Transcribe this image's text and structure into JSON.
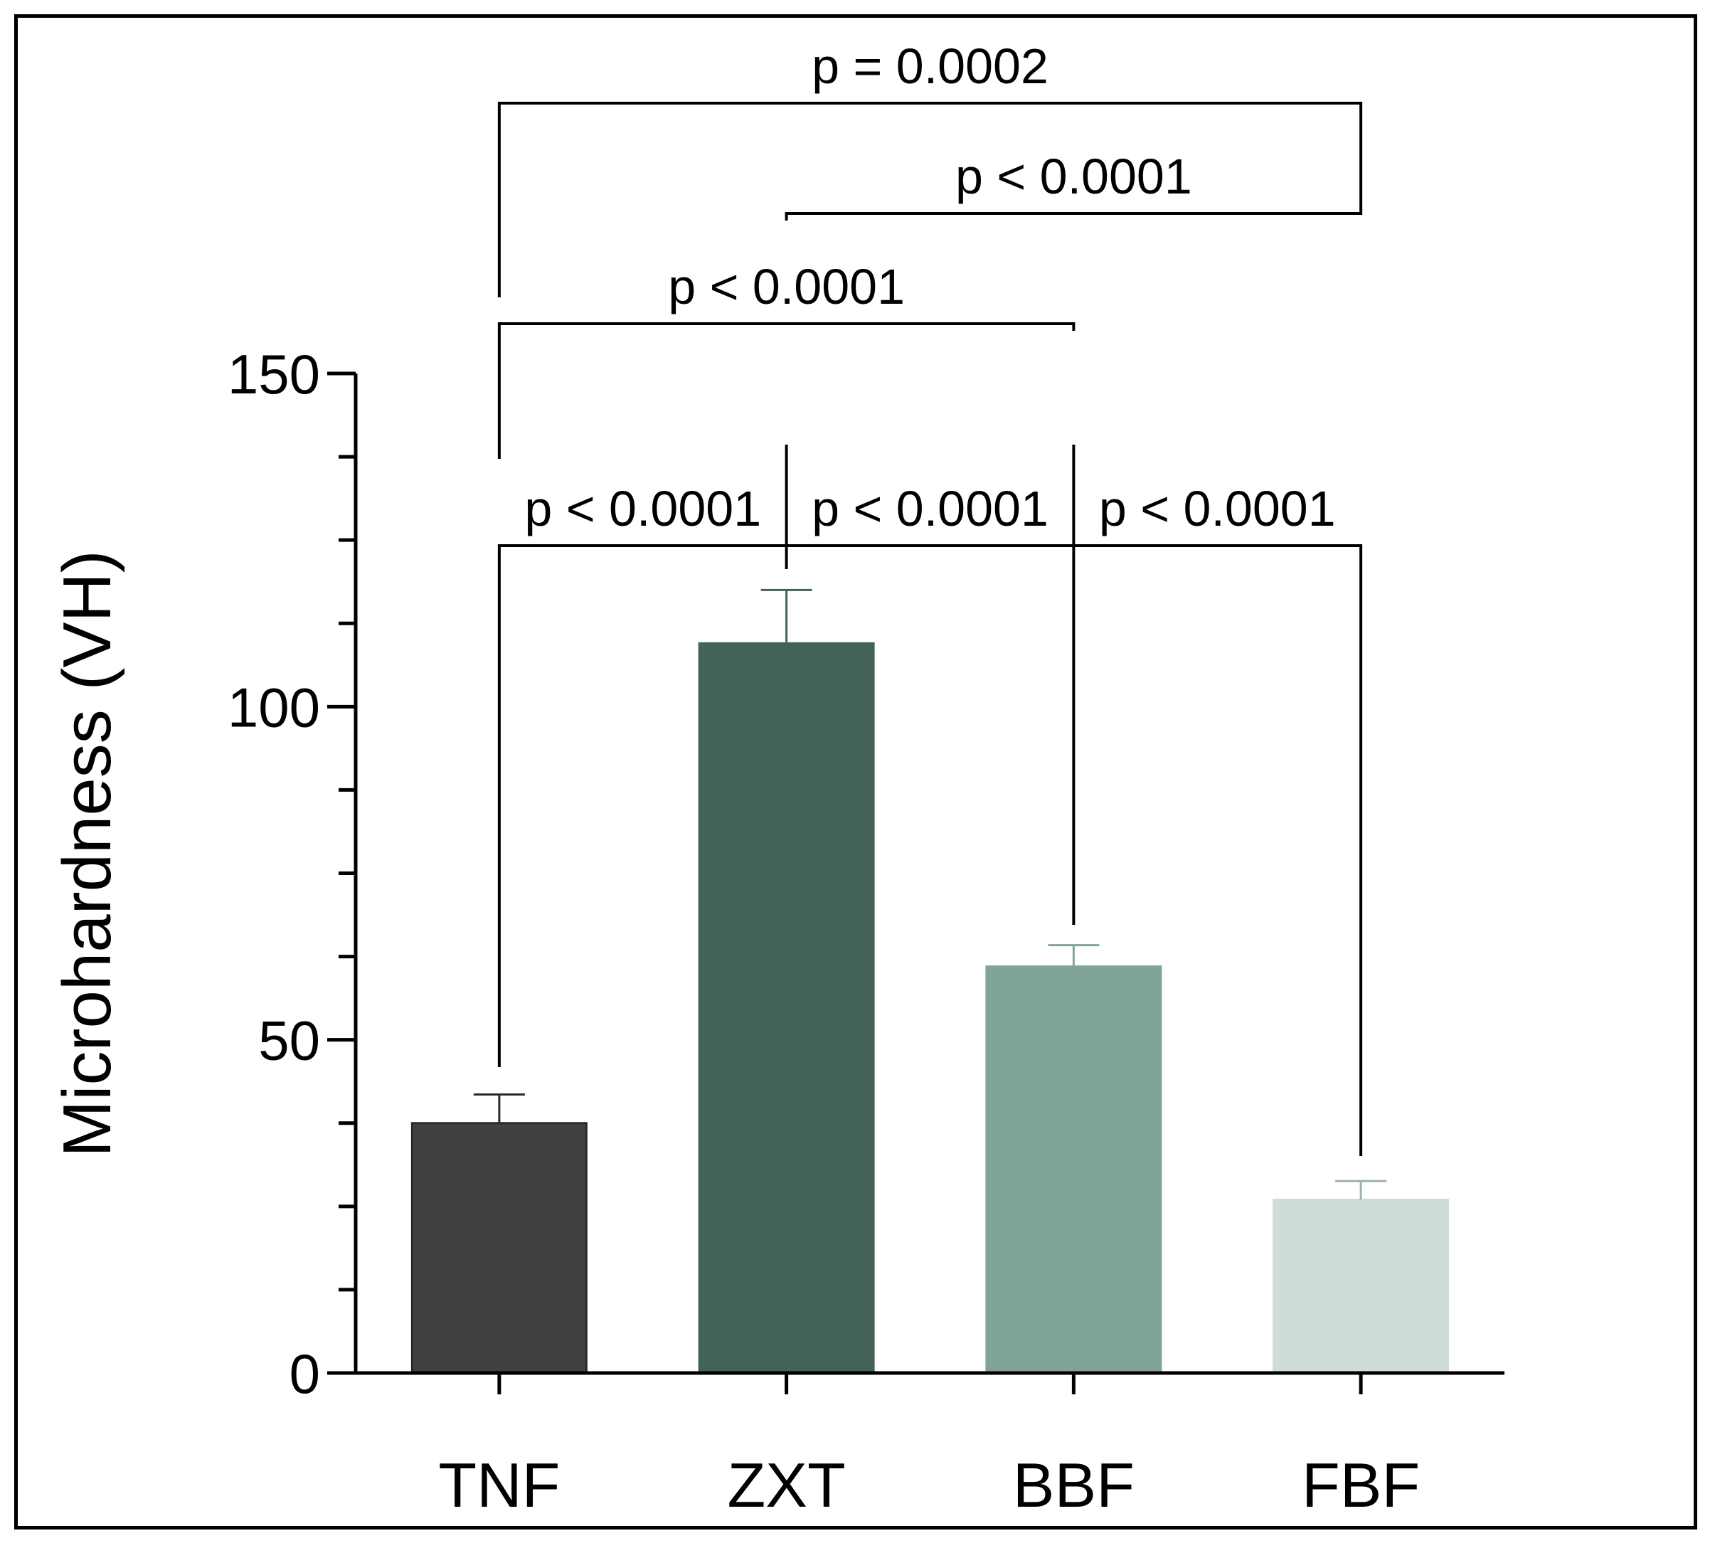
{
  "chart_data": {
    "type": "bar",
    "title": "",
    "xlabel": "",
    "ylabel": "Microhardness (VH)",
    "ylim": [
      0,
      150
    ],
    "y_major_ticks": [
      0,
      50,
      100,
      150
    ],
    "y_tick_labels": [
      "0",
      "50",
      "100",
      "150"
    ],
    "y_minor_step": 12.5,
    "categories": [
      "TNF",
      "ZXT",
      "BBF",
      "FBF"
    ],
    "values": [
      37.5,
      109.5,
      61,
      26
    ],
    "errors": [
      4.3,
      8.0,
      3.2,
      2.8
    ],
    "colors": [
      "#414141",
      "#426355",
      "#80a497",
      "#d0ddd6"
    ],
    "comparisons": [
      {
        "from": 0,
        "to": 1,
        "label": "p < 0.0001"
      },
      {
        "from": 1,
        "to": 2,
        "label": "p < 0.0001"
      },
      {
        "from": 2,
        "to": 3,
        "label": "p < 0.0001"
      },
      {
        "from": 0,
        "to": 2,
        "label": "p < 0.0001"
      },
      {
        "from": 1,
        "to": 3,
        "label": "p < 0.0001"
      },
      {
        "from": 0,
        "to": 3,
        "label": "p = 0.0002"
      }
    ]
  }
}
